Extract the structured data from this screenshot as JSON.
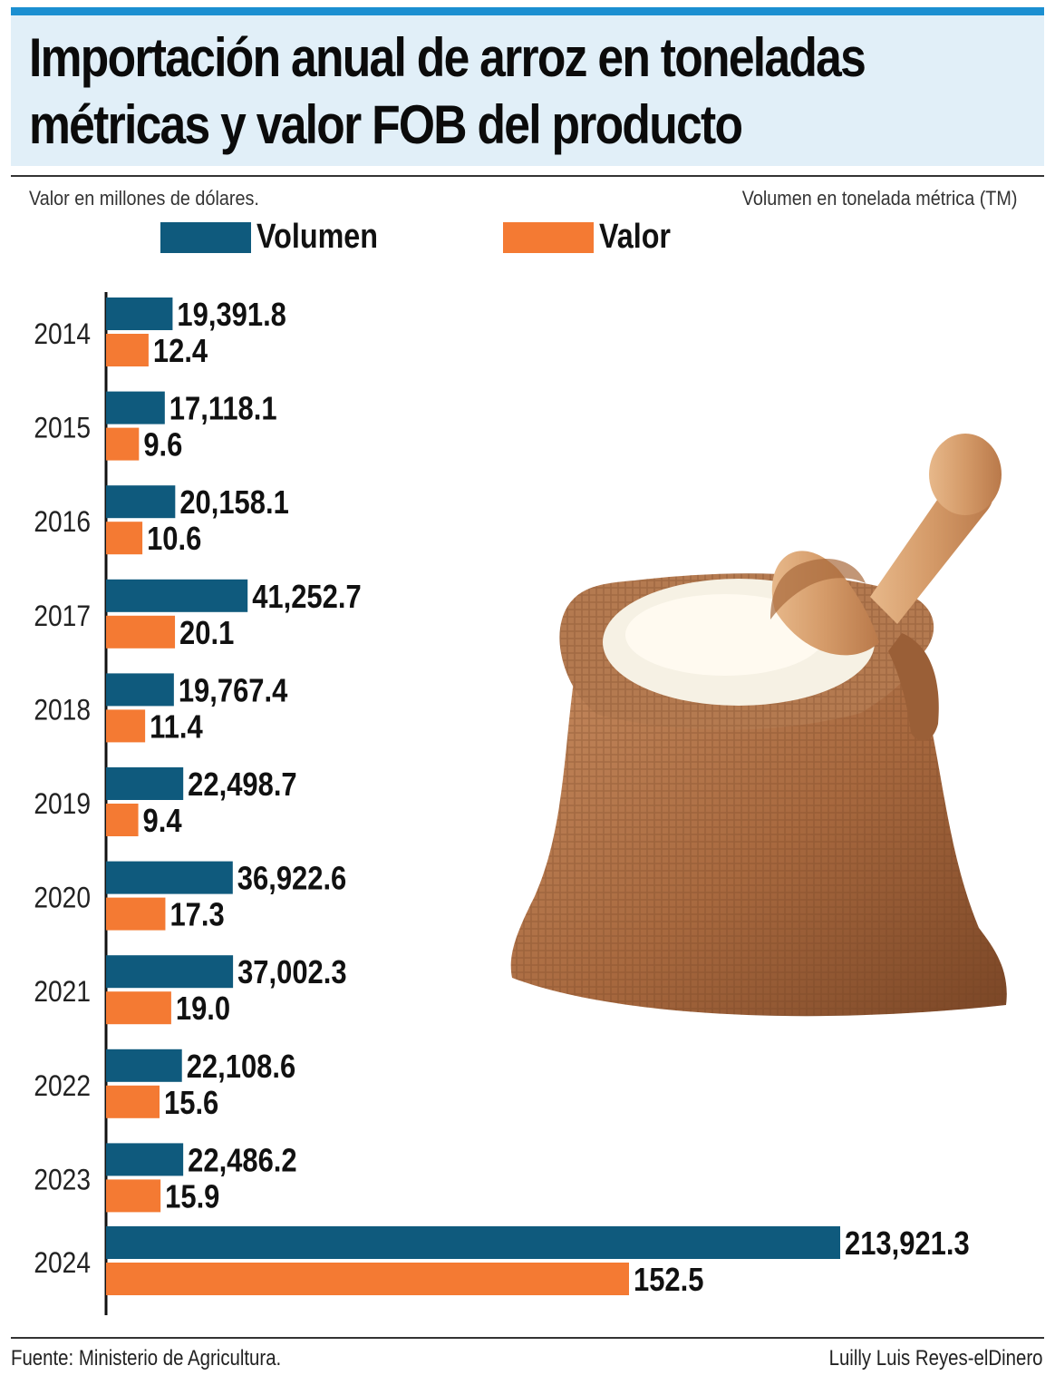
{
  "header": {
    "title_line1": "Importación anual de arroz en toneladas",
    "title_line2": "métricas y valor FOB del producto"
  },
  "notes": {
    "left": "Valor en millones de dólares.",
    "right": "Volumen en tonelada métrica (TM)"
  },
  "legend": [
    {
      "label": "Volumen",
      "color": "#0f5a7d"
    },
    {
      "label": "Valor",
      "color": "#f47a33"
    }
  ],
  "chart_data": {
    "type": "bar",
    "orientation": "horizontal",
    "title": "Importación anual de arroz en toneladas métricas y valor FOB del producto",
    "categories": [
      "2014",
      "2015",
      "2016",
      "2017",
      "2018",
      "2019",
      "2020",
      "2021",
      "2022",
      "2023",
      "2024"
    ],
    "series": [
      {
        "name": "Volumen",
        "color": "#0f5a7d",
        "values": [
          19391.8,
          17118.1,
          20158.1,
          41252.7,
          19767.4,
          22498.7,
          36922.6,
          37002.3,
          22108.6,
          22486.2,
          213921.3
        ],
        "labels": [
          "19,391.8",
          "17,118.1",
          "20,158.1",
          "41,252.7",
          "19,767.4",
          "22,498.7",
          "36,922.6",
          "37,002.3",
          "22,108.6",
          "22,486.2",
          "213,921.3"
        ]
      },
      {
        "name": "Valor",
        "color": "#f47a33",
        "values": [
          12.4,
          9.6,
          10.6,
          20.1,
          11.4,
          9.4,
          17.3,
          19.0,
          15.6,
          15.9,
          152.5
        ],
        "labels": [
          "12.4",
          "9.6",
          "10.6",
          "20.1",
          "11.4",
          "9.4",
          "17.3",
          "19.0",
          "15.6",
          "15.9",
          "152.5"
        ]
      }
    ],
    "axis_note_value": "Valor en millones de dólares.",
    "axis_note_volume": "Volumen en tonelada métrica (TM)",
    "grid": false,
    "legend_position": "top"
  },
  "footer": {
    "source": "Fuente: Ministerio de Agricultura.",
    "credit": "Luilly Luis Reyes-elDinero"
  }
}
